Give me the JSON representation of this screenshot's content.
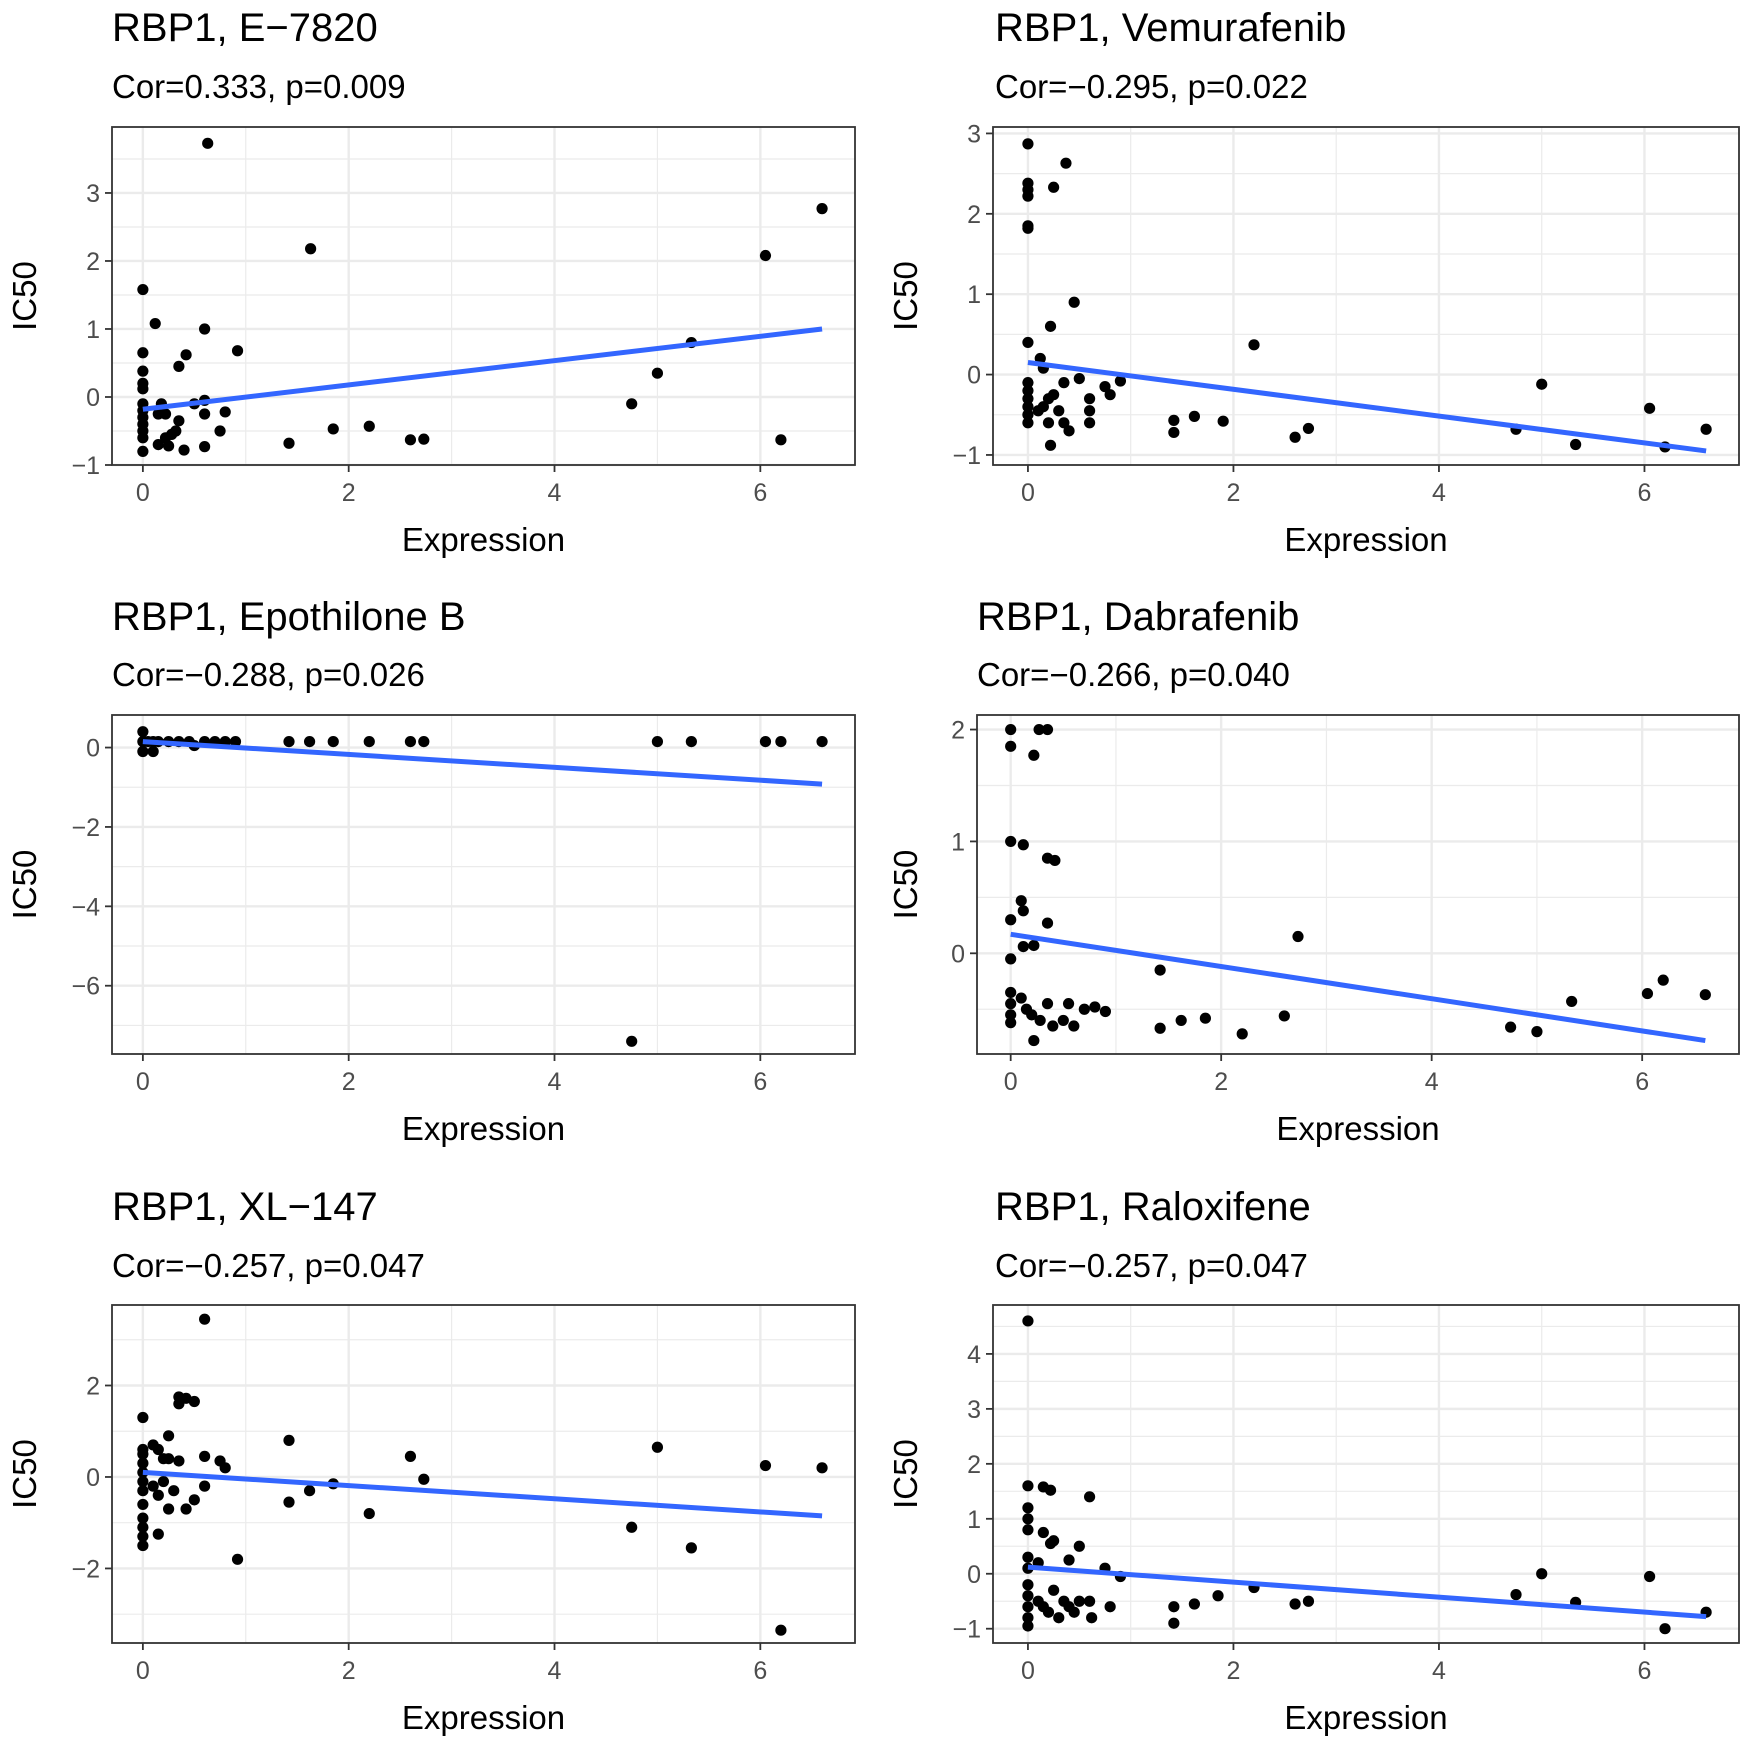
{
  "chart_data": [
    {
      "type": "scatter",
      "title": "RBP1, E−7820",
      "subtitle": "Cor=0.333, p=0.009",
      "xlabel": "Expression",
      "ylabel": "IC50",
      "xlim": [
        -0.3,
        6.92
      ],
      "ylim": [
        -1.0,
        3.97
      ],
      "xticks": [
        0,
        2,
        4,
        6
      ],
      "yticks": [
        -1,
        0,
        1,
        2,
        3
      ],
      "xtick_labels": [
        "0",
        "2",
        "4",
        "6"
      ],
      "ytick_labels": [
        "−1",
        "0",
        "1",
        "2",
        "3"
      ],
      "grid": true,
      "fit_line": [
        [
          0,
          -0.18
        ],
        [
          6.6,
          1.0
        ]
      ],
      "points": [
        [
          0.63,
          3.73
        ],
        [
          1.63,
          2.18
        ],
        [
          6.6,
          2.77
        ],
        [
          6.05,
          2.08
        ],
        [
          0,
          1.58
        ],
        [
          0.12,
          1.08
        ],
        [
          0.6,
          1.0
        ],
        [
          0.92,
          0.68
        ],
        [
          0.42,
          0.62
        ],
        [
          0.35,
          0.45
        ],
        [
          0,
          0.65
        ],
        [
          0,
          0.38
        ],
        [
          0,
          0.2
        ],
        [
          0,
          0.12
        ],
        [
          0,
          -0.1
        ],
        [
          0,
          -0.2
        ],
        [
          0,
          -0.3
        ],
        [
          0,
          -0.4
        ],
        [
          0,
          -0.5
        ],
        [
          0,
          -0.6
        ],
        [
          0,
          -0.8
        ],
        [
          0.18,
          -0.1
        ],
        [
          0.15,
          -0.25
        ],
        [
          0.22,
          -0.25
        ],
        [
          0.35,
          -0.35
        ],
        [
          0.32,
          -0.5
        ],
        [
          0.28,
          -0.55
        ],
        [
          0.22,
          -0.6
        ],
        [
          0.15,
          -0.7
        ],
        [
          0.25,
          -0.72
        ],
        [
          0.4,
          -0.78
        ],
        [
          0.5,
          -0.1
        ],
        [
          0.6,
          -0.05
        ],
        [
          0.6,
          -0.25
        ],
        [
          0.75,
          -0.5
        ],
        [
          0.8,
          -0.22
        ],
        [
          0.6,
          -0.73
        ],
        [
          1.42,
          -0.68
        ],
        [
          1.85,
          -0.47
        ],
        [
          2.2,
          -0.43
        ],
        [
          2.6,
          -0.63
        ],
        [
          2.73,
          -0.62
        ],
        [
          4.75,
          -0.1
        ],
        [
          5.0,
          0.35
        ],
        [
          5.33,
          0.8
        ],
        [
          6.2,
          -0.63
        ]
      ]
    },
    {
      "type": "scatter",
      "title": "RBP1, Vemurafenib",
      "subtitle": "Cor=−0.295, p=0.022",
      "xlabel": "Expression",
      "ylabel": "IC50",
      "xlim": [
        -0.34,
        6.92
      ],
      "ylim": [
        -1.125,
        3.08
      ],
      "xticks": [
        0,
        2,
        4,
        6
      ],
      "yticks": [
        -1,
        0,
        1,
        2,
        3
      ],
      "xtick_labels": [
        "0",
        "2",
        "4",
        "6"
      ],
      "ytick_labels": [
        "−1",
        "0",
        "1",
        "2",
        "3"
      ],
      "grid": true,
      "fit_line": [
        [
          0,
          0.15
        ],
        [
          6.6,
          -0.95
        ]
      ],
      "points": [
        [
          0,
          2.87
        ],
        [
          0,
          2.38
        ],
        [
          0,
          2.3
        ],
        [
          0,
          2.22
        ],
        [
          0.25,
          2.33
        ],
        [
          0.37,
          2.63
        ],
        [
          0,
          1.85
        ],
        [
          0,
          1.82
        ],
        [
          0.45,
          0.9
        ],
        [
          0.22,
          0.6
        ],
        [
          0.12,
          0.2
        ],
        [
          0,
          0.4
        ],
        [
          0.15,
          0.08
        ],
        [
          2.2,
          0.37
        ],
        [
          0,
          -0.1
        ],
        [
          0,
          -0.2
        ],
        [
          0,
          -0.3
        ],
        [
          0,
          -0.4
        ],
        [
          0,
          -0.5
        ],
        [
          0,
          -0.6
        ],
        [
          0.1,
          -0.45
        ],
        [
          0.15,
          -0.4
        ],
        [
          0.2,
          -0.3
        ],
        [
          0.25,
          -0.25
        ],
        [
          0.3,
          -0.45
        ],
        [
          0.35,
          -0.1
        ],
        [
          0.35,
          -0.6
        ],
        [
          0.4,
          -0.7
        ],
        [
          0.2,
          -0.6
        ],
        [
          0.22,
          -0.88
        ],
        [
          0.5,
          -0.05
        ],
        [
          0.6,
          -0.3
        ],
        [
          0.6,
          -0.45
        ],
        [
          0.6,
          -0.6
        ],
        [
          0.75,
          -0.15
        ],
        [
          0.8,
          -0.25
        ],
        [
          0.9,
          -0.08
        ],
        [
          1.42,
          -0.57
        ],
        [
          1.42,
          -0.72
        ],
        [
          1.62,
          -0.52
        ],
        [
          1.9,
          -0.58
        ],
        [
          2.6,
          -0.78
        ],
        [
          2.73,
          -0.67
        ],
        [
          4.75,
          -0.68
        ],
        [
          5.0,
          -0.12
        ],
        [
          5.33,
          -0.87
        ],
        [
          6.05,
          -0.42
        ],
        [
          6.2,
          -0.9
        ],
        [
          6.6,
          -0.68
        ]
      ]
    },
    {
      "type": "scatter",
      "title": "RBP1, Epothilone B",
      "subtitle": "Cor=−0.288, p=0.026",
      "xlabel": "Expression",
      "ylabel": "IC50",
      "xlim": [
        -0.3,
        6.92
      ],
      "ylim": [
        -7.72,
        0.82
      ],
      "xticks": [
        0,
        2,
        4,
        6
      ],
      "yticks": [
        -6,
        -4,
        -2,
        0
      ],
      "xtick_labels": [
        "0",
        "2",
        "4",
        "6"
      ],
      "ytick_labels": [
        "−6",
        "−4",
        "−2",
        "0"
      ],
      "grid": true,
      "fit_line": [
        [
          0,
          0.15
        ],
        [
          6.6,
          -0.92
        ]
      ],
      "points": [
        [
          0,
          0.4
        ],
        [
          0,
          -0.1
        ],
        [
          0.1,
          -0.1
        ],
        [
          0,
          0.15
        ],
        [
          0.05,
          0.15
        ],
        [
          0.1,
          0.15
        ],
        [
          0.15,
          0.15
        ],
        [
          0.25,
          0.15
        ],
        [
          0.35,
          0.15
        ],
        [
          0.45,
          0.15
        ],
        [
          0.5,
          0.05
        ],
        [
          0.6,
          0.15
        ],
        [
          0.7,
          0.15
        ],
        [
          0.8,
          0.15
        ],
        [
          0.9,
          0.15
        ],
        [
          1.42,
          0.15
        ],
        [
          1.62,
          0.15
        ],
        [
          1.85,
          0.15
        ],
        [
          2.2,
          0.15
        ],
        [
          2.6,
          0.15
        ],
        [
          2.73,
          0.15
        ],
        [
          5.0,
          0.15
        ],
        [
          5.33,
          0.15
        ],
        [
          6.05,
          0.15
        ],
        [
          6.2,
          0.15
        ],
        [
          6.6,
          0.15
        ],
        [
          4.75,
          -7.4
        ]
      ]
    },
    {
      "type": "scatter",
      "title": "RBP1, Dabrafenib",
      "subtitle": "Cor=−0.266, p=0.040",
      "xlabel": "Expression",
      "ylabel": "IC50",
      "xlim": [
        -0.32,
        6.92
      ],
      "ylim": [
        -0.9,
        2.13
      ],
      "xticks": [
        0,
        2,
        4,
        6
      ],
      "yticks": [
        0,
        1,
        2
      ],
      "xtick_labels": [
        "0",
        "2",
        "4",
        "6"
      ],
      "ytick_labels": [
        "0",
        "1",
        "2"
      ],
      "grid": true,
      "fit_line": [
        [
          0,
          0.17
        ],
        [
          6.6,
          -0.78
        ]
      ],
      "points": [
        [
          0,
          2.0
        ],
        [
          0,
          1.85
        ],
        [
          0.27,
          2.0
        ],
        [
          0.35,
          2.0
        ],
        [
          0.22,
          1.77
        ],
        [
          0,
          1.0
        ],
        [
          0.12,
          0.97
        ],
        [
          0.35,
          0.85
        ],
        [
          0.42,
          0.83
        ],
        [
          0.1,
          0.47
        ],
        [
          0.12,
          0.38
        ],
        [
          0,
          0.3
        ],
        [
          0.35,
          0.27
        ],
        [
          0.12,
          0.06
        ],
        [
          0.22,
          0.07
        ],
        [
          0,
          -0.05
        ],
        [
          2.73,
          0.15
        ],
        [
          1.42,
          -0.15
        ],
        [
          0,
          -0.35
        ],
        [
          0,
          -0.45
        ],
        [
          0,
          -0.55
        ],
        [
          0,
          -0.62
        ],
        [
          0.1,
          -0.4
        ],
        [
          0.15,
          -0.5
        ],
        [
          0.2,
          -0.55
        ],
        [
          0.22,
          -0.78
        ],
        [
          0.28,
          -0.6
        ],
        [
          0.35,
          -0.45
        ],
        [
          0.4,
          -0.65
        ],
        [
          0.5,
          -0.6
        ],
        [
          0.55,
          -0.45
        ],
        [
          0.6,
          -0.65
        ],
        [
          0.7,
          -0.5
        ],
        [
          0.8,
          -0.48
        ],
        [
          0.9,
          -0.52
        ],
        [
          1.42,
          -0.67
        ],
        [
          1.62,
          -0.6
        ],
        [
          1.85,
          -0.58
        ],
        [
          2.2,
          -0.72
        ],
        [
          2.6,
          -0.56
        ],
        [
          4.75,
          -0.66
        ],
        [
          5.0,
          -0.7
        ],
        [
          5.33,
          -0.43
        ],
        [
          6.05,
          -0.36
        ],
        [
          6.2,
          -0.24
        ],
        [
          6.6,
          -0.37
        ]
      ]
    },
    {
      "type": "scatter",
      "title": "RBP1, XL−147",
      "subtitle": "Cor=−0.257, p=0.047",
      "xlabel": "Expression",
      "ylabel": "IC50",
      "xlim": [
        -0.3,
        6.92
      ],
      "ylim": [
        -3.63,
        3.76
      ],
      "xticks": [
        0,
        2,
        4,
        6
      ],
      "yticks": [
        -2,
        0,
        2
      ],
      "xtick_labels": [
        "0",
        "2",
        "4",
        "6"
      ],
      "ytick_labels": [
        "−2",
        "0",
        "2"
      ],
      "grid": true,
      "fit_line": [
        [
          0,
          0.1
        ],
        [
          6.6,
          -0.85
        ]
      ],
      "points": [
        [
          0.6,
          3.45
        ],
        [
          0.35,
          1.75
        ],
        [
          0.42,
          1.72
        ],
        [
          0.5,
          1.65
        ],
        [
          0.35,
          1.6
        ],
        [
          0,
          1.3
        ],
        [
          0.25,
          0.9
        ],
        [
          1.42,
          0.8
        ],
        [
          5.0,
          0.65
        ],
        [
          0,
          0.6
        ],
        [
          0,
          0.5
        ],
        [
          0.1,
          0.7
        ],
        [
          0.15,
          0.6
        ],
        [
          0.2,
          0.4
        ],
        [
          0.25,
          0.4
        ],
        [
          0.35,
          0.35
        ],
        [
          0.6,
          0.45
        ],
        [
          0.75,
          0.35
        ],
        [
          0.8,
          0.2
        ],
        [
          0,
          0.3
        ],
        [
          0,
          0.1
        ],
        [
          0,
          -0.1
        ],
        [
          0,
          -0.3
        ],
        [
          0,
          -0.6
        ],
        [
          0,
          -0.9
        ],
        [
          0,
          -1.1
        ],
        [
          0,
          -1.3
        ],
        [
          0,
          -1.5
        ],
        [
          0.1,
          -0.2
        ],
        [
          0.15,
          -0.4
        ],
        [
          0.2,
          -0.1
        ],
        [
          0.25,
          -0.7
        ],
        [
          0.3,
          -0.3
        ],
        [
          0.42,
          -0.7
        ],
        [
          0.5,
          -0.5
        ],
        [
          0.6,
          -0.2
        ],
        [
          0.15,
          -1.25
        ],
        [
          0.92,
          -1.8
        ],
        [
          1.42,
          -0.55
        ],
        [
          1.62,
          -0.3
        ],
        [
          1.85,
          -0.15
        ],
        [
          2.2,
          -0.8
        ],
        [
          2.6,
          0.45
        ],
        [
          2.73,
          -0.05
        ],
        [
          4.75,
          -1.1
        ],
        [
          5.33,
          -1.55
        ],
        [
          6.05,
          0.25
        ],
        [
          6.2,
          -3.35
        ],
        [
          6.6,
          0.2
        ]
      ]
    },
    {
      "type": "scatter",
      "title": "RBP1, Raloxifene",
      "subtitle": "Cor=−0.257, p=0.047",
      "xlabel": "Expression",
      "ylabel": "IC50",
      "xlim": [
        -0.34,
        6.92
      ],
      "ylim": [
        -1.26,
        4.89
      ],
      "xticks": [
        0,
        2,
        4,
        6
      ],
      "yticks": [
        -1,
        0,
        1,
        2,
        3,
        4
      ],
      "xtick_labels": [
        "0",
        "2",
        "4",
        "6"
      ],
      "ytick_labels": [
        "−1",
        "0",
        "1",
        "2",
        "3",
        "4"
      ],
      "grid": true,
      "fit_line": [
        [
          0,
          0.12
        ],
        [
          6.6,
          -0.78
        ]
      ],
      "points": [
        [
          0,
          4.6
        ],
        [
          0,
          1.6
        ],
        [
          0.15,
          1.58
        ],
        [
          0.22,
          1.52
        ],
        [
          0.6,
          1.4
        ],
        [
          0,
          1.2
        ],
        [
          0,
          1.0
        ],
        [
          0,
          0.8
        ],
        [
          0.15,
          0.75
        ],
        [
          0.22,
          0.55
        ],
        [
          0.25,
          0.6
        ],
        [
          0.5,
          0.5
        ],
        [
          0,
          0.3
        ],
        [
          0,
          0.1
        ],
        [
          0.1,
          0.2
        ],
        [
          0.4,
          0.25
        ],
        [
          0.75,
          0.1
        ],
        [
          0.9,
          -0.05
        ],
        [
          5.0,
          0
        ],
        [
          6.05,
          -0.05
        ],
        [
          0,
          -0.2
        ],
        [
          0,
          -0.4
        ],
        [
          0,
          -0.6
        ],
        [
          0,
          -0.8
        ],
        [
          0,
          -0.95
        ],
        [
          0.1,
          -0.5
        ],
        [
          0.15,
          -0.6
        ],
        [
          0.2,
          -0.7
        ],
        [
          0.25,
          -0.3
        ],
        [
          0.3,
          -0.8
        ],
        [
          0.35,
          -0.5
        ],
        [
          0.4,
          -0.6
        ],
        [
          0.45,
          -0.7
        ],
        [
          0.5,
          -0.5
        ],
        [
          0.6,
          -0.5
        ],
        [
          0.62,
          -0.8
        ],
        [
          0.8,
          -0.6
        ],
        [
          1.42,
          -0.6
        ],
        [
          1.42,
          -0.9
        ],
        [
          1.62,
          -0.55
        ],
        [
          1.85,
          -0.4
        ],
        [
          2.2,
          -0.25
        ],
        [
          2.6,
          -0.55
        ],
        [
          2.73,
          -0.5
        ],
        [
          4.75,
          -0.38
        ],
        [
          5.33,
          -0.52
        ],
        [
          6.2,
          -1.0
        ],
        [
          6.6,
          -0.7
        ]
      ]
    }
  ],
  "colors": {
    "point": "#000000",
    "fit_line": "#3366FF",
    "grid": "#EBEBEB",
    "border": "#333333"
  }
}
